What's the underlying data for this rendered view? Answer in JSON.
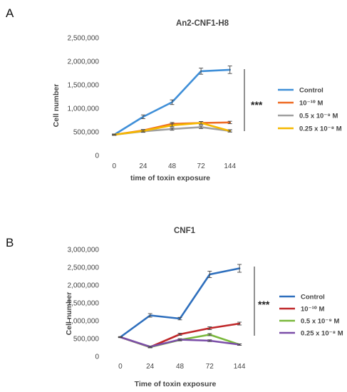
{
  "chart_data": [
    {
      "panel": "A",
      "type": "line",
      "title": "An2-CNF1-H8",
      "xlabel": "time of toxin exposure",
      "ylabel": "Cell number",
      "categories": [
        "0",
        "24",
        "48",
        "72",
        "144"
      ],
      "ylim": [
        0,
        2500000
      ],
      "yticks": [
        0,
        500000,
        1000000,
        1500000,
        2000000,
        2500000
      ],
      "ytick_labels": [
        "0",
        "500,000",
        "1,000,000",
        "1,500,000",
        "2,000,000",
        "2,500,000"
      ],
      "grid": false,
      "legend_position": "right",
      "significance": "***",
      "series": [
        {
          "name": "Control",
          "color": "#3f8fd8",
          "values": [
            440000,
            820000,
            1130000,
            1790000,
            1820000
          ],
          "errors": [
            15000,
            40000,
            50000,
            65000,
            80000
          ]
        },
        {
          "name": "10⁻¹⁰ M",
          "color": "#ee6a22",
          "values": [
            440000,
            530000,
            670000,
            690000,
            700000
          ],
          "errors": [
            10000,
            20000,
            30000,
            30000,
            25000
          ]
        },
        {
          "name": "0.5 x 10⁻⁹ M",
          "color": "#a0a0a0",
          "values": [
            440000,
            510000,
            560000,
            600000,
            520000
          ],
          "errors": [
            10000,
            20000,
            25000,
            30000,
            25000
          ]
        },
        {
          "name": "0.25 x 10⁻⁸ M",
          "color": "#f5b800",
          "values": [
            440000,
            520000,
            640000,
            690000,
            520000
          ],
          "errors": [
            10000,
            20000,
            30000,
            30000,
            20000
          ]
        }
      ]
    },
    {
      "panel": "B",
      "type": "line",
      "title": "CNF1",
      "xlabel": "Time of toxin exposure",
      "ylabel": "Cell number",
      "categories": [
        "0",
        "24",
        "48",
        "72",
        "144"
      ],
      "ylim": [
        0,
        3000000
      ],
      "yticks": [
        0,
        500000,
        1000000,
        1500000,
        2000000,
        2500000,
        3000000
      ],
      "ytick_labels": [
        "0",
        "500,000",
        "1,000,000",
        "1,500,000",
        "2,000,000",
        "2,500,000",
        "3,000,000"
      ],
      "grid": false,
      "legend_position": "right",
      "significance": "***",
      "series": [
        {
          "name": "Control",
          "color": "#2e6fbd",
          "values": [
            540000,
            1150000,
            1060000,
            2300000,
            2470000
          ],
          "errors": [
            15000,
            50000,
            35000,
            90000,
            110000
          ]
        },
        {
          "name": "10⁻¹⁰ M",
          "color": "#c0282a",
          "values": [
            540000,
            260000,
            620000,
            790000,
            920000
          ],
          "errors": [
            10000,
            20000,
            30000,
            40000,
            40000
          ]
        },
        {
          "name": "0.5 x 10⁻⁹ M",
          "color": "#7ab83c",
          "values": [
            540000,
            260000,
            460000,
            610000,
            330000
          ],
          "errors": [
            10000,
            20000,
            25000,
            30000,
            20000
          ]
        },
        {
          "name": "0.25 x 10⁻⁸ M",
          "color": "#7b4ea8",
          "values": [
            540000,
            270000,
            470000,
            440000,
            330000
          ],
          "errors": [
            10000,
            20000,
            25000,
            25000,
            20000
          ]
        }
      ]
    }
  ]
}
